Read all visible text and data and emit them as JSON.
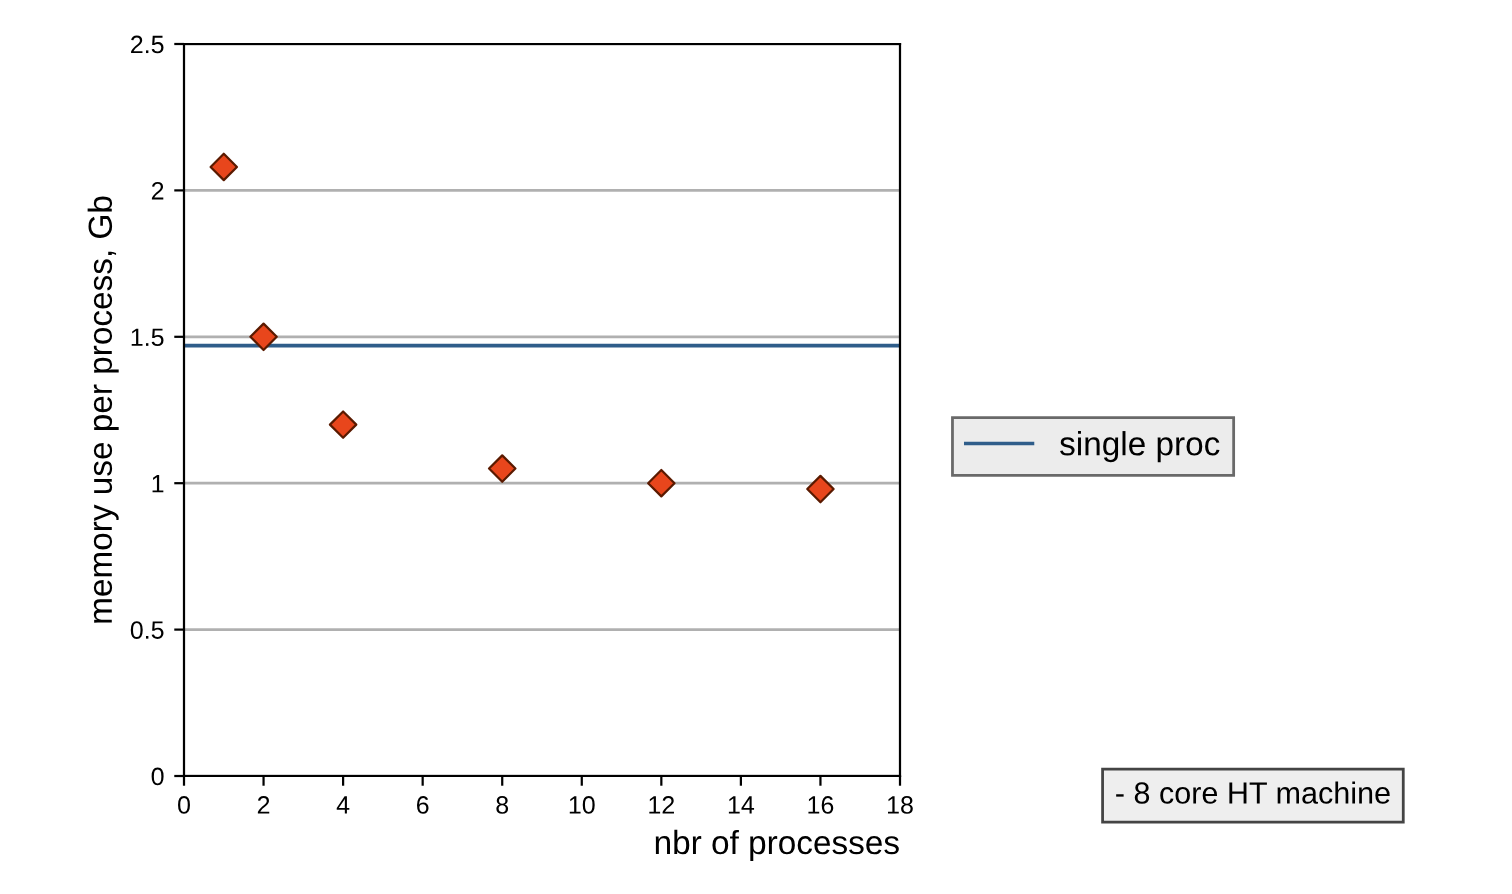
{
  "chart_data": {
    "type": "scatter",
    "xlabel": "nbr of processes",
    "ylabel": "memory use per process, Gb",
    "x": [
      1,
      2,
      4,
      8,
      12,
      16
    ],
    "series": [
      {
        "color": "#e8461c",
        "values": [
          2.08,
          1.5,
          1.2,
          1.05,
          1.0,
          0.98
        ]
      }
    ],
    "ref_lines": [
      {
        "axis": "y",
        "value": 1.47,
        "label": "single proc",
        "color": "#2f5d8a",
        "line_style": "solid"
      }
    ],
    "marker": "diamond",
    "grid": "y",
    "legend": "right",
    "xlim": [
      0,
      18
    ],
    "xticks": [
      0,
      2,
      4,
      6,
      8,
      10,
      12,
      14,
      16,
      18
    ],
    "ylim": [
      0,
      2.5
    ],
    "yticks": [
      0,
      0.5,
      1,
      1.5,
      2,
      2.5
    ],
    "annotations": [
      "- 8 core HT machine"
    ]
  }
}
